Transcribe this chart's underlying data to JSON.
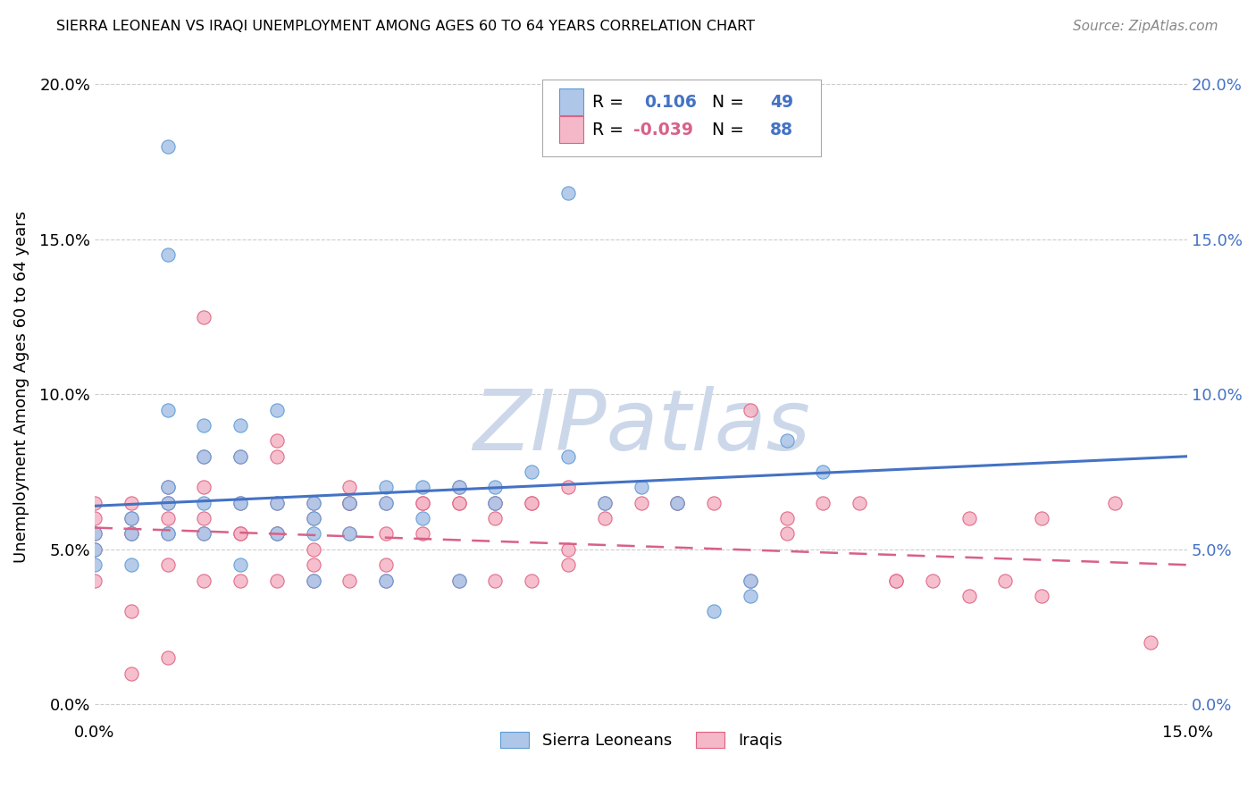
{
  "title": "SIERRA LEONEAN VS IRAQI UNEMPLOYMENT AMONG AGES 60 TO 64 YEARS CORRELATION CHART",
  "source": "Source: ZipAtlas.com",
  "ylabel": "Unemployment Among Ages 60 to 64 years",
  "xlim": [
    0.0,
    0.15
  ],
  "ylim": [
    -0.005,
    0.21
  ],
  "sl_color": "#aec6e8",
  "sl_edge_color": "#5b9bd5",
  "iq_color": "#f4b8c8",
  "iq_edge_color": "#e06080",
  "sl_line_color": "#4472c4",
  "iq_line_color": "#d96087",
  "watermark_color": "#ccd8ea",
  "legend_label_sl": "Sierra Leoneans",
  "legend_label_iq": "Iraqis",
  "sl_line_x0": 0.0,
  "sl_line_y0": 0.064,
  "sl_line_x1": 0.15,
  "sl_line_y1": 0.08,
  "iq_line_x0": 0.0,
  "iq_line_y0": 0.057,
  "iq_line_x1": 0.15,
  "iq_line_y1": 0.045,
  "sl_scatter_x": [
    0.0,
    0.0,
    0.0,
    0.005,
    0.005,
    0.005,
    0.01,
    0.01,
    0.01,
    0.01,
    0.01,
    0.015,
    0.015,
    0.015,
    0.015,
    0.02,
    0.02,
    0.02,
    0.02,
    0.025,
    0.025,
    0.025,
    0.03,
    0.03,
    0.03,
    0.03,
    0.035,
    0.035,
    0.04,
    0.04,
    0.04,
    0.045,
    0.045,
    0.05,
    0.05,
    0.055,
    0.055,
    0.06,
    0.065,
    0.065,
    0.07,
    0.075,
    0.08,
    0.085,
    0.09,
    0.09,
    0.095,
    0.1,
    0.01
  ],
  "sl_scatter_y": [
    0.055,
    0.05,
    0.045,
    0.06,
    0.055,
    0.045,
    0.18,
    0.145,
    0.095,
    0.065,
    0.055,
    0.09,
    0.08,
    0.065,
    0.055,
    0.09,
    0.08,
    0.065,
    0.045,
    0.095,
    0.065,
    0.055,
    0.065,
    0.06,
    0.055,
    0.04,
    0.065,
    0.055,
    0.07,
    0.065,
    0.04,
    0.07,
    0.06,
    0.07,
    0.04,
    0.07,
    0.065,
    0.075,
    0.165,
    0.08,
    0.065,
    0.07,
    0.065,
    0.03,
    0.04,
    0.035,
    0.085,
    0.075,
    0.07
  ],
  "iq_scatter_x": [
    0.0,
    0.0,
    0.0,
    0.0,
    0.005,
    0.005,
    0.005,
    0.005,
    0.01,
    0.01,
    0.01,
    0.01,
    0.015,
    0.015,
    0.015,
    0.015,
    0.015,
    0.02,
    0.02,
    0.02,
    0.02,
    0.025,
    0.025,
    0.025,
    0.025,
    0.03,
    0.03,
    0.03,
    0.03,
    0.035,
    0.035,
    0.035,
    0.035,
    0.04,
    0.04,
    0.04,
    0.045,
    0.045,
    0.05,
    0.05,
    0.05,
    0.055,
    0.055,
    0.06,
    0.06,
    0.065,
    0.065,
    0.07,
    0.075,
    0.08,
    0.085,
    0.09,
    0.095,
    0.1,
    0.105,
    0.11,
    0.115,
    0.12,
    0.125,
    0.13,
    0.005,
    0.01,
    0.015,
    0.02,
    0.025,
    0.03,
    0.035,
    0.04,
    0.045,
    0.05,
    0.055,
    0.06,
    0.065,
    0.07,
    0.08,
    0.09,
    0.095,
    0.11,
    0.12,
    0.13,
    0.14,
    0.145,
    0.0,
    0.005,
    0.01,
    0.025,
    0.035,
    0.055
  ],
  "iq_scatter_y": [
    0.06,
    0.055,
    0.05,
    0.04,
    0.065,
    0.06,
    0.055,
    0.03,
    0.065,
    0.06,
    0.055,
    0.045,
    0.125,
    0.07,
    0.06,
    0.055,
    0.04,
    0.08,
    0.065,
    0.055,
    0.04,
    0.085,
    0.065,
    0.055,
    0.04,
    0.065,
    0.06,
    0.05,
    0.04,
    0.07,
    0.065,
    0.055,
    0.04,
    0.065,
    0.055,
    0.04,
    0.065,
    0.055,
    0.07,
    0.065,
    0.04,
    0.065,
    0.04,
    0.065,
    0.04,
    0.07,
    0.045,
    0.06,
    0.065,
    0.065,
    0.065,
    0.04,
    0.06,
    0.065,
    0.065,
    0.04,
    0.04,
    0.035,
    0.04,
    0.035,
    0.01,
    0.015,
    0.08,
    0.055,
    0.055,
    0.045,
    0.065,
    0.045,
    0.065,
    0.065,
    0.06,
    0.065,
    0.05,
    0.065,
    0.065,
    0.095,
    0.055,
    0.04,
    0.06,
    0.06,
    0.065,
    0.02,
    0.065,
    0.055,
    0.07,
    0.08,
    0.065,
    0.065
  ]
}
